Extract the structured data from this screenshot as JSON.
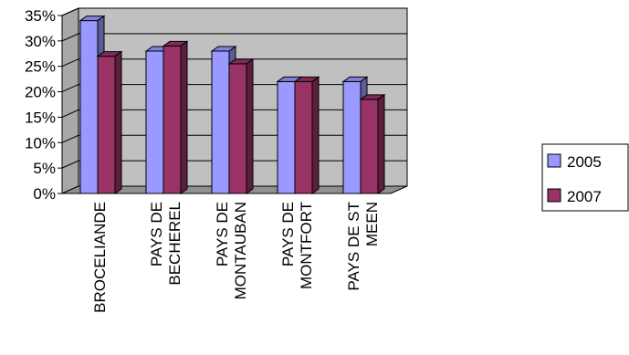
{
  "chart_data": {
    "type": "bar",
    "style": "3d-clustered-column",
    "categories": [
      [
        "BROCELIANDE"
      ],
      [
        "PAYS DE",
        "BECHEREL"
      ],
      [
        "PAYS DE",
        "MONTAUBAN"
      ],
      [
        "PAYS DE",
        "MONTFORT"
      ],
      [
        "PAYS DE ST",
        "MEEN"
      ]
    ],
    "series": [
      {
        "name": "2005",
        "values": [
          34,
          28,
          28,
          22,
          22
        ],
        "color": "#9999ff"
      },
      {
        "name": "2007",
        "values": [
          27,
          29,
          25.5,
          22,
          18.5
        ],
        "color": "#993366"
      }
    ],
    "yticks": [
      "0%",
      "5%",
      "10%",
      "15%",
      "20%",
      "25%",
      "30%",
      "35%"
    ],
    "ylim": [
      0,
      35
    ],
    "title": "",
    "xlabel": "",
    "ylabel": "",
    "grid": true,
    "legend_position": "right",
    "wall_color": "#c0c0c0"
  }
}
